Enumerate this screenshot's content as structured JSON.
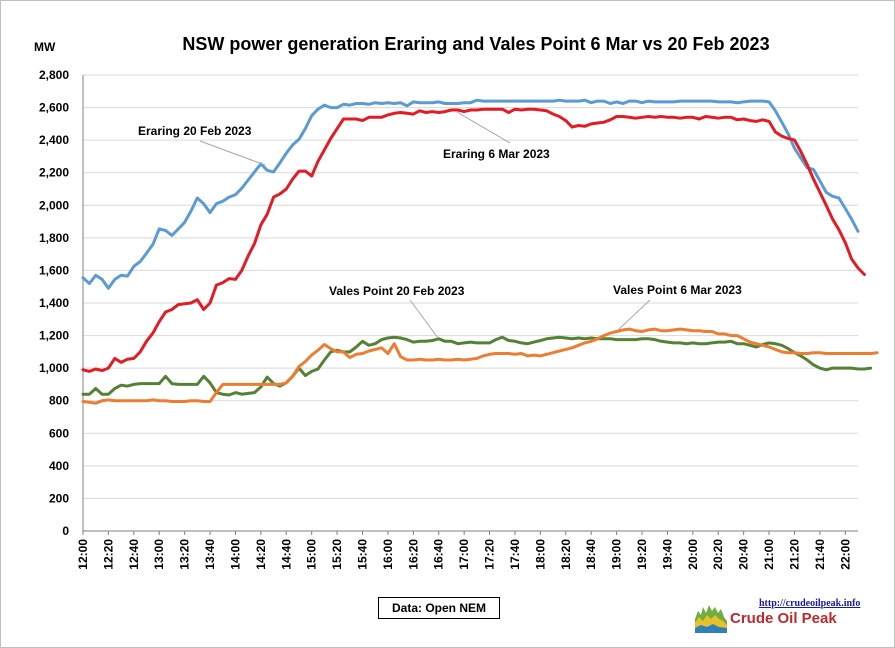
{
  "chart_data": {
    "type": "line",
    "title": "NSW power generation Eraring and Vales Point 6 Mar vs 20 Feb 2023",
    "ylabel": "MW",
    "xlabel": "",
    "ylim": [
      0,
      2800
    ],
    "yticks": [
      "0",
      "200",
      "400",
      "600",
      "800",
      "1,000",
      "1,200",
      "1,400",
      "1,600",
      "1,800",
      "2,000",
      "2,200",
      "2,400",
      "2,600",
      "2,800"
    ],
    "xtick_labels": [
      "12:00",
      "12:20",
      "12:40",
      "13:00",
      "13:20",
      "13:40",
      "14:00",
      "14:20",
      "14:40",
      "15:00",
      "15:20",
      "15:40",
      "16:00",
      "16:20",
      "16:40",
      "17:00",
      "17:20",
      "17:40",
      "18:00",
      "18:20",
      "18:40",
      "19:00",
      "19:20",
      "19:40",
      "20:00",
      "20:20",
      "20:40",
      "21:00",
      "21:20",
      "21:40",
      "22:00"
    ],
    "x_interval_minutes": 5,
    "grid": "horizontal",
    "series": [
      {
        "name": "Eraring 20 Feb 2023",
        "color": "#5b9bd5",
        "values": [
          1555,
          1520,
          1570,
          1545,
          1490,
          1545,
          1570,
          1565,
          1625,
          1655,
          1705,
          1760,
          1855,
          1845,
          1815,
          1855,
          1895,
          1965,
          2045,
          2010,
          1955,
          2010,
          2025,
          2050,
          2065,
          2105,
          2155,
          2205,
          2255,
          2215,
          2205,
          2260,
          2320,
          2370,
          2405,
          2470,
          2550,
          2590,
          2615,
          2600,
          2600,
          2620,
          2615,
          2625,
          2625,
          2620,
          2630,
          2625,
          2630,
          2625,
          2630,
          2610,
          2635,
          2630,
          2630,
          2630,
          2635,
          2625,
          2625,
          2625,
          2630,
          2630,
          2645,
          2640,
          2640,
          2640,
          2640,
          2640,
          2640,
          2640,
          2640,
          2640,
          2640,
          2640,
          2640,
          2645,
          2640,
          2640,
          2640,
          2645,
          2630,
          2640,
          2640,
          2625,
          2635,
          2625,
          2640,
          2640,
          2630,
          2640,
          2635,
          2635,
          2635,
          2635,
          2640,
          2640,
          2640,
          2640,
          2640,
          2640,
          2635,
          2635,
          2635,
          2630,
          2635,
          2640,
          2640,
          2640,
          2635,
          2580,
          2510,
          2440,
          2350,
          2290,
          2230,
          2220,
          2150,
          2080,
          2055,
          2045,
          1980,
          1915,
          1840
        ]
      },
      {
        "name": "Eraring 6 Mar 2023",
        "color": "#e31b23",
        "values": [
          990,
          980,
          995,
          985,
          1000,
          1060,
          1035,
          1055,
          1060,
          1100,
          1165,
          1215,
          1285,
          1345,
          1360,
          1390,
          1395,
          1400,
          1420,
          1360,
          1400,
          1510,
          1525,
          1550,
          1545,
          1600,
          1690,
          1765,
          1880,
          1945,
          2050,
          2070,
          2100,
          2160,
          2210,
          2210,
          2180,
          2270,
          2340,
          2410,
          2470,
          2530,
          2530,
          2530,
          2520,
          2540,
          2540,
          2540,
          2555,
          2565,
          2570,
          2565,
          2560,
          2580,
          2570,
          2575,
          2570,
          2575,
          2585,
          2585,
          2575,
          2585,
          2585,
          2590,
          2590,
          2590,
          2590,
          2570,
          2590,
          2585,
          2590,
          2590,
          2585,
          2580,
          2560,
          2545,
          2520,
          2480,
          2490,
          2485,
          2500,
          2505,
          2510,
          2525,
          2545,
          2545,
          2540,
          2535,
          2540,
          2545,
          2540,
          2545,
          2540,
          2540,
          2535,
          2540,
          2540,
          2530,
          2545,
          2540,
          2535,
          2540,
          2540,
          2525,
          2530,
          2520,
          2515,
          2525,
          2515,
          2450,
          2425,
          2410,
          2400,
          2330,
          2250,
          2160,
          2080,
          2000,
          1915,
          1850,
          1770,
          1670,
          1615,
          1575
        ]
      },
      {
        "name": "Vales Point 20 Feb 2023",
        "color": "#548235",
        "values": [
          840,
          840,
          875,
          840,
          840,
          875,
          895,
          890,
          900,
          905,
          905,
          905,
          905,
          950,
          905,
          900,
          900,
          900,
          900,
          950,
          910,
          850,
          840,
          835,
          850,
          840,
          845,
          850,
          885,
          945,
          905,
          890,
          910,
          950,
          1000,
          955,
          980,
          995,
          1050,
          1100,
          1110,
          1100,
          1100,
          1130,
          1165,
          1140,
          1150,
          1175,
          1185,
          1190,
          1185,
          1175,
          1160,
          1165,
          1165,
          1170,
          1180,
          1165,
          1165,
          1150,
          1155,
          1160,
          1155,
          1155,
          1155,
          1175,
          1190,
          1170,
          1165,
          1155,
          1150,
          1160,
          1170,
          1180,
          1185,
          1190,
          1185,
          1180,
          1185,
          1180,
          1185,
          1180,
          1180,
          1180,
          1175,
          1175,
          1175,
          1175,
          1180,
          1180,
          1175,
          1165,
          1160,
          1155,
          1155,
          1150,
          1155,
          1150,
          1150,
          1155,
          1160,
          1160,
          1165,
          1150,
          1150,
          1140,
          1130,
          1145,
          1155,
          1150,
          1140,
          1120,
          1095,
          1075,
          1050,
          1020,
          1000,
          990,
          1000,
          1000,
          1000,
          1000,
          995,
          995,
          1000
        ]
      },
      {
        "name": "Vales Point 6 Mar 2023",
        "color": "#ed7d31",
        "values": [
          795,
          790,
          785,
          800,
          805,
          800,
          800,
          800,
          800,
          800,
          800,
          805,
          800,
          800,
          795,
          795,
          795,
          800,
          800,
          795,
          795,
          850,
          900,
          900,
          900,
          900,
          900,
          900,
          900,
          900,
          900,
          900,
          910,
          950,
          1010,
          1040,
          1080,
          1110,
          1145,
          1120,
          1100,
          1100,
          1065,
          1085,
          1090,
          1105,
          1115,
          1125,
          1090,
          1150,
          1070,
          1050,
          1050,
          1055,
          1050,
          1050,
          1055,
          1050,
          1050,
          1055,
          1050,
          1055,
          1060,
          1075,
          1085,
          1090,
          1090,
          1090,
          1085,
          1090,
          1075,
          1080,
          1075,
          1085,
          1095,
          1105,
          1115,
          1125,
          1140,
          1155,
          1165,
          1180,
          1200,
          1215,
          1225,
          1235,
          1240,
          1230,
          1225,
          1235,
          1240,
          1230,
          1230,
          1235,
          1240,
          1235,
          1230,
          1230,
          1225,
          1225,
          1210,
          1210,
          1200,
          1200,
          1180,
          1160,
          1150,
          1140,
          1130,
          1115,
          1100,
          1095,
          1095,
          1090,
          1090,
          1095,
          1095,
          1090,
          1090,
          1090,
          1090,
          1090,
          1090,
          1090,
          1090,
          1095
        ]
      }
    ],
    "annotations": [
      {
        "text": "Eraring 20 Feb 2023",
        "series": 0
      },
      {
        "text": "Eraring 6 Mar 2023",
        "series": 1
      },
      {
        "text": "Vales Point 20 Feb 2023",
        "series": 2
      },
      {
        "text": "Vales Point 6 Mar 2023",
        "series": 3
      }
    ],
    "source_note": "Data: Open NEM"
  },
  "logo": {
    "url": "http://crudeoilpeak.info",
    "name": "Crude Oil Peak"
  }
}
